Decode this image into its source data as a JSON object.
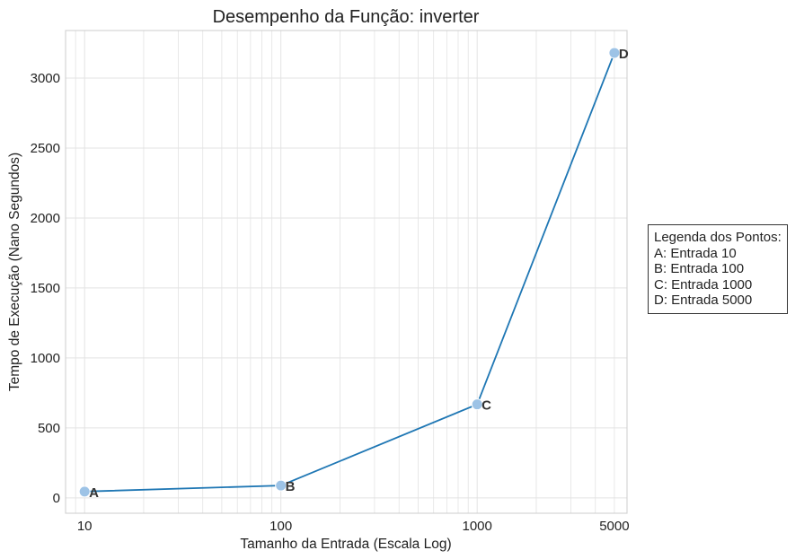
{
  "chart_data": {
    "type": "line",
    "title": "Desempenho da Função: inverter",
    "xlabel": "Tamanho da Entrada (Escala Log)",
    "ylabel": "Tempo de Execução (Nano Segundos)",
    "x_scale": "log",
    "xlim": [
      8,
      5800
    ],
    "ylim": [
      -110,
      3340
    ],
    "x_ticks": [
      10,
      100,
      1000,
      5000
    ],
    "x_tick_labels": [
      "10",
      "100",
      "1000",
      "5000"
    ],
    "y_ticks": [
      0,
      500,
      1000,
      1500,
      2000,
      2500,
      3000
    ],
    "y_tick_labels": [
      "0",
      "500",
      "1000",
      "1500",
      "2000",
      "2500",
      "3000"
    ],
    "grid": true,
    "line_color": "#1f77b4",
    "marker_color": "#9dc3e6",
    "series": [
      {
        "x": [
          10,
          100,
          1000,
          5000
        ],
        "y": [
          45,
          88,
          668,
          3180
        ],
        "point_labels": [
          "A",
          "B",
          "C",
          "D"
        ]
      }
    ],
    "legend": {
      "title": "Legenda dos Pontos:",
      "entries": [
        "A: Entrada 10",
        "B: Entrada 100",
        "C: Entrada 1000",
        "D: Entrada 5000"
      ],
      "placement": "right-outside"
    }
  }
}
